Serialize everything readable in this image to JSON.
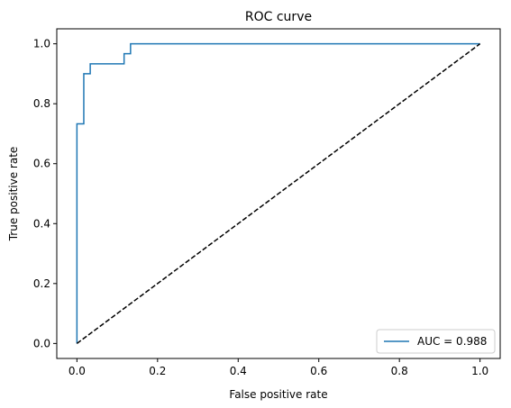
{
  "chart_data": {
    "type": "line",
    "title": "ROC curve",
    "xlabel": "False positive rate",
    "ylabel": "True positive rate",
    "xlim": [
      -0.05,
      1.05
    ],
    "ylim": [
      -0.05,
      1.05
    ],
    "xticks": [
      0.0,
      0.2,
      0.4,
      0.6,
      0.8,
      1.0
    ],
    "yticks": [
      0.0,
      0.2,
      0.4,
      0.6,
      0.8,
      1.0
    ],
    "grid": false,
    "legend_position": "lower-right",
    "series": [
      {
        "name": "AUC = 0.988",
        "color": "#1f77b4",
        "style": "solid",
        "step": true,
        "x": [
          0.0,
          0.0,
          0.017,
          0.017,
          0.033,
          0.033,
          0.117,
          0.117,
          0.133,
          0.133,
          1.0
        ],
        "y": [
          0.0,
          0.733,
          0.733,
          0.9,
          0.9,
          0.933,
          0.933,
          0.967,
          0.967,
          1.0,
          1.0
        ]
      },
      {
        "color": "#000000",
        "style": "dashed",
        "x": [
          0.0,
          1.0
        ],
        "y": [
          0.0,
          1.0
        ]
      }
    ]
  }
}
